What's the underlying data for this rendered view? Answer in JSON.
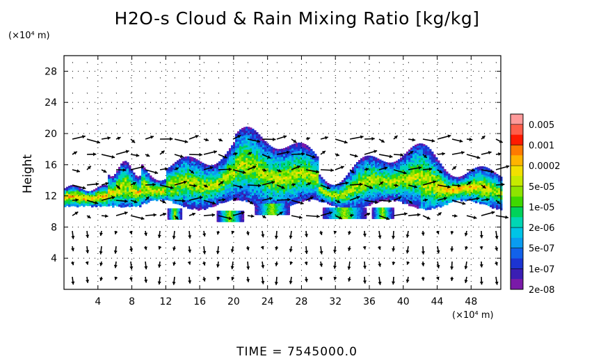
{
  "chart_data": {
    "type": "heatmap",
    "title": "H2O-s Cloud & Rain Mixing Ratio [kg/kg]",
    "ylabel": "Height",
    "yunit": "(×10⁴ m)",
    "xunit": "(×10⁴ m)",
    "xlim": [
      0,
      51.5
    ],
    "ylim": [
      0,
      30
    ],
    "xticks": [
      4,
      8,
      12,
      16,
      20,
      24,
      28,
      32,
      36,
      40,
      44,
      48
    ],
    "yticks": [
      4,
      8,
      12,
      16,
      20,
      24,
      28
    ],
    "colorbar": {
      "labels": [
        "0.005",
        "0.001",
        "0.0002",
        "5e-05",
        "1e-05",
        "2e-06",
        "5e-07",
        "1e-07",
        "2e-08"
      ],
      "colors": [
        "#ff9a9a",
        "#ff5e4a",
        "#ff1a00",
        "#ff7a00",
        "#ffb400",
        "#f2e000",
        "#c6ea00",
        "#8ee400",
        "#3ed800",
        "#00d25a",
        "#00d6b4",
        "#00c4e6",
        "#0a9cf0",
        "#1262ea",
        "#1c34d2",
        "#3a1eb4",
        "#7a1aa8"
      ]
    },
    "field_description_levels": [
      2e-08,
      1e-07,
      5e-07,
      2e-06,
      1e-05,
      5e-05,
      0.0002,
      0.001,
      0.005
    ],
    "grid": true,
    "vectors": true
  },
  "footer": {
    "time_label": "TIME  =  7545000.0"
  },
  "colors": {
    "background": "#ffffff",
    "axis": "#000000"
  }
}
